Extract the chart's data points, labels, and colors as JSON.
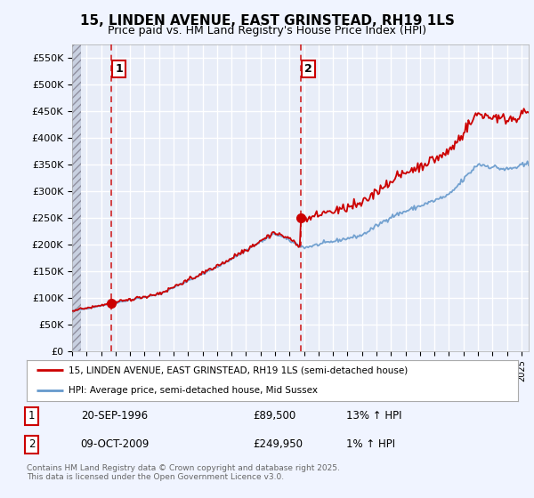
{
  "title": "15, LINDEN AVENUE, EAST GRINSTEAD, RH19 1LS",
  "subtitle": "Price paid vs. HM Land Registry's House Price Index (HPI)",
  "background_color": "#f0f4ff",
  "plot_bg_color": "#e8edf8",
  "hpi_color": "#6699cc",
  "property_color": "#cc0000",
  "vline_color": "#cc0000",
  "ylim": [
    0,
    575000
  ],
  "yticks": [
    0,
    50000,
    100000,
    150000,
    200000,
    250000,
    300000,
    350000,
    400000,
    450000,
    500000,
    550000
  ],
  "ytick_labels": [
    "£0",
    "£50K",
    "£100K",
    "£150K",
    "£200K",
    "£250K",
    "£300K",
    "£350K",
    "£400K",
    "£450K",
    "£500K",
    "£550K"
  ],
  "year_start": 1994,
  "year_end": 2025,
  "sale1_date": 1996.72,
  "sale1_price": 89500,
  "sale1_label": "1",
  "sale2_date": 2009.77,
  "sale2_price": 249950,
  "sale2_label": "2",
  "legend_property": "15, LINDEN AVENUE, EAST GRINSTEAD, RH19 1LS (semi-detached house)",
  "legend_hpi": "HPI: Average price, semi-detached house, Mid Sussex",
  "table_row1": [
    "1",
    "20-SEP-1996",
    "£89,500",
    "13% ↑ HPI"
  ],
  "table_row2": [
    "2",
    "09-OCT-2009",
    "£249,950",
    "1% ↑ HPI"
  ],
  "footnote": "Contains HM Land Registry data © Crown copyright and database right 2025.\nThis data is licensed under the Open Government Licence v3.0.",
  "grid_color": "#ffffff"
}
